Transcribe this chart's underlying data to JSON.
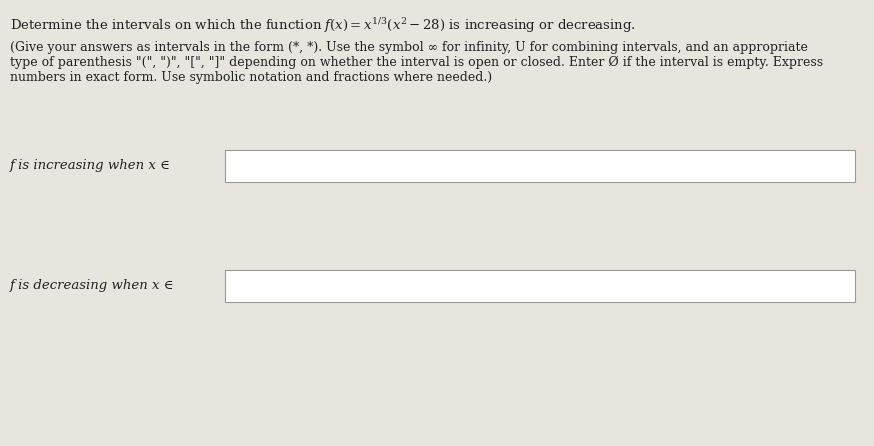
{
  "background_color": "#e8e5de",
  "box_color": "#ffffff",
  "box_edge_color": "#999999",
  "text_color": "#222222",
  "title_fontsize": 9.5,
  "instruction_fontsize": 9.0,
  "label_fontsize": 9.5,
  "title_text": "Determine the intervals on which the function $f(x) = x^{1/3}(x^2 - 28)$ is increasing or decreasing.",
  "instr1": "(Give your answers as intervals in the form (*, *). Use the symbol ∞ for infinity, U for combining intervals, and an appropriate",
  "instr2": "type of parenthesis \"(\", \")\", \"[\", \"]\" depending on whether the interval is open or closed. Enter Ø if the interval is empty. Express",
  "instr3": "numbers in exact form. Use symbolic notation and fractions where needed.)",
  "label_inc": "f is increasing when x ∈",
  "label_dec": "f is decreasing when x ∈"
}
